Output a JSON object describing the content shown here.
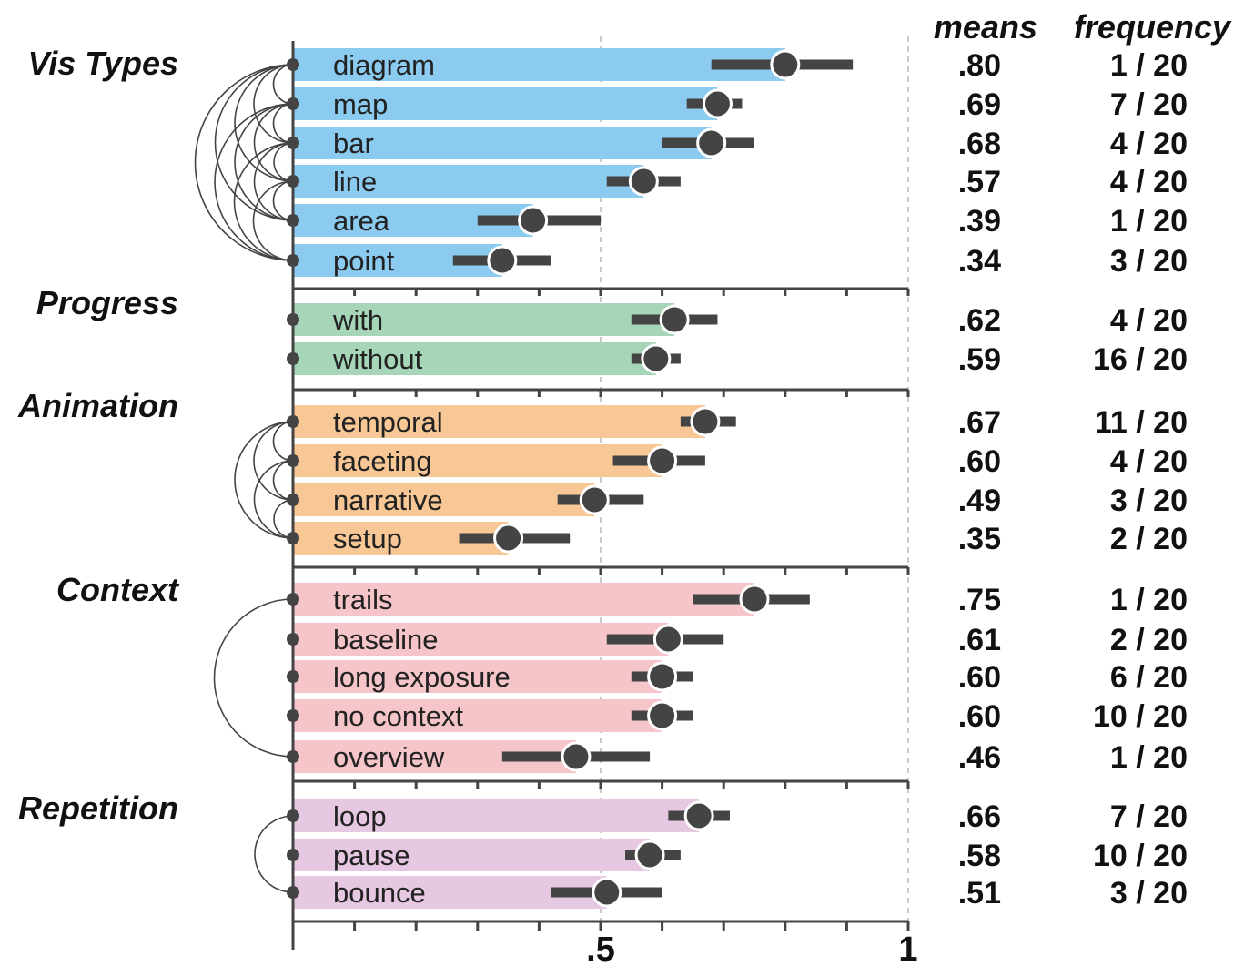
{
  "chart_data": {
    "type": "bar",
    "xlim": [
      0,
      1
    ],
    "x_ticks": [
      {
        "value": 0.5,
        "label": ".5"
      },
      {
        "value": 1,
        "label": "1"
      }
    ],
    "grid": "dashed vertical lines at .5 and 1",
    "columns": {
      "means": "means",
      "frequency": "frequency"
    },
    "groups": [
      {
        "name": "Vis Types",
        "color": "#8ccbf0",
        "categories": [
          {
            "label": "diagram",
            "mean": 0.8,
            "ci": [
              0.68,
              0.91
            ],
            "mean_text": ".80",
            "freq_text": "1 / 20"
          },
          {
            "label": "map",
            "mean": 0.69,
            "ci": [
              0.64,
              0.73
            ],
            "mean_text": ".69",
            "freq_text": "7 / 20"
          },
          {
            "label": "bar",
            "mean": 0.68,
            "ci": [
              0.6,
              0.75
            ],
            "mean_text": ".68",
            "freq_text": "4 / 20"
          },
          {
            "label": "line",
            "mean": 0.57,
            "ci": [
              0.51,
              0.63
            ],
            "mean_text": ".57",
            "freq_text": "4 / 20"
          },
          {
            "label": "area",
            "mean": 0.39,
            "ci": [
              0.3,
              0.5
            ],
            "mean_text": ".39",
            "freq_text": "1 / 20"
          },
          {
            "label": "point",
            "mean": 0.34,
            "ci": [
              0.26,
              0.42
            ],
            "mean_text": ".34",
            "freq_text": "3 / 20"
          }
        ],
        "arcs": [
          [
            0,
            1
          ],
          [
            0,
            2
          ],
          [
            0,
            3
          ],
          [
            0,
            4
          ],
          [
            0,
            5
          ],
          [
            1,
            2
          ],
          [
            1,
            3
          ],
          [
            1,
            4
          ],
          [
            1,
            5
          ],
          [
            2,
            3
          ],
          [
            2,
            4
          ],
          [
            2,
            5
          ],
          [
            3,
            4
          ],
          [
            3,
            5
          ]
        ]
      },
      {
        "name": "Progress",
        "color": "#a6d5b8",
        "categories": [
          {
            "label": "with",
            "mean": 0.62,
            "ci": [
              0.55,
              0.69
            ],
            "mean_text": ".62",
            "freq_text": "4 / 20"
          },
          {
            "label": "without",
            "mean": 0.59,
            "ci": [
              0.55,
              0.63
            ],
            "mean_text": ".59",
            "freq_text": "16 / 20"
          }
        ],
        "arcs": []
      },
      {
        "name": "Animation",
        "color": "#f8c796",
        "categories": [
          {
            "label": "temporal",
            "mean": 0.67,
            "ci": [
              0.63,
              0.72
            ],
            "mean_text": ".67",
            "freq_text": "11 / 20"
          },
          {
            "label": "faceting",
            "mean": 0.6,
            "ci": [
              0.52,
              0.67
            ],
            "mean_text": ".60",
            "freq_text": "4 / 20"
          },
          {
            "label": "narrative",
            "mean": 0.49,
            "ci": [
              0.43,
              0.57
            ],
            "mean_text": ".49",
            "freq_text": "3 / 20"
          },
          {
            "label": "setup",
            "mean": 0.35,
            "ci": [
              0.27,
              0.45
            ],
            "mean_text": ".35",
            "freq_text": "2 / 20"
          }
        ],
        "arcs": [
          [
            0,
            1
          ],
          [
            0,
            2
          ],
          [
            0,
            3
          ],
          [
            1,
            2
          ],
          [
            1,
            3
          ],
          [
            2,
            3
          ]
        ]
      },
      {
        "name": "Context",
        "color": "#f6c5ca",
        "categories": [
          {
            "label": "trails",
            "mean": 0.75,
            "ci": [
              0.65,
              0.84
            ],
            "mean_text": ".75",
            "freq_text": "1 / 20"
          },
          {
            "label": "baseline",
            "mean": 0.61,
            "ci": [
              0.51,
              0.7
            ],
            "mean_text": ".61",
            "freq_text": "2 / 20"
          },
          {
            "label": "long exposure",
            "mean": 0.6,
            "ci": [
              0.55,
              0.65
            ],
            "mean_text": ".60",
            "freq_text": "6 / 20"
          },
          {
            "label": "no context",
            "mean": 0.6,
            "ci": [
              0.55,
              0.65
            ],
            "mean_text": ".60",
            "freq_text": "10 / 20"
          },
          {
            "label": "overview",
            "mean": 0.46,
            "ci": [
              0.34,
              0.58
            ],
            "mean_text": ".46",
            "freq_text": "1 / 20"
          }
        ],
        "arcs": [
          [
            0,
            4
          ]
        ]
      },
      {
        "name": "Repetition",
        "color": "#e6c8e2",
        "categories": [
          {
            "label": "loop",
            "mean": 0.66,
            "ci": [
              0.61,
              0.71
            ],
            "mean_text": ".66",
            "freq_text": "7 / 20"
          },
          {
            "label": "pause",
            "mean": 0.58,
            "ci": [
              0.54,
              0.63
            ],
            "mean_text": ".58",
            "freq_text": "10 / 20"
          },
          {
            "label": "bounce",
            "mean": 0.51,
            "ci": [
              0.42,
              0.6
            ],
            "mean_text": ".51",
            "freq_text": "3 / 20"
          }
        ],
        "arcs": [
          [
            0,
            2
          ]
        ]
      }
    ]
  }
}
